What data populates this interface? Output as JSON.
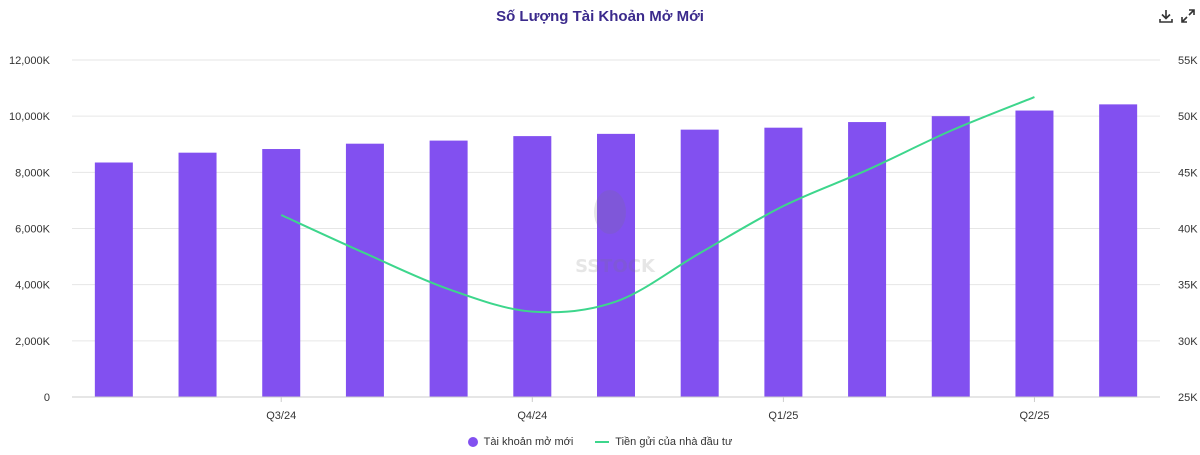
{
  "title": "Số Lượng Tài Khoản Mở Mới",
  "toolbar": {
    "download_icon": "download-icon",
    "expand_icon": "expand-icon"
  },
  "watermark_text": "SSTOCK",
  "colors": {
    "bar": "#8250f0",
    "line": "#3dd68c",
    "title": "#3b2a8c",
    "grid": "#e6e6e6"
  },
  "legend": [
    {
      "label": "Tài khoản mở mới",
      "kind": "dot"
    },
    {
      "label": "Tiền gửi của nhà đầu tư",
      "kind": "line"
    }
  ],
  "chart_data": {
    "type": "bar",
    "title": "Số Lượng Tài Khoản Mở Mới",
    "x_tick_labels": [
      "Q3/24",
      "Q4/24",
      "Q1/25",
      "Q2/25"
    ],
    "x_tick_bar_index": [
      2,
      5,
      8,
      11
    ],
    "left_axis": {
      "ticks": [
        "0",
        "2,000K",
        "4,000K",
        "6,000K",
        "8,000K",
        "10,000K",
        "12,000K"
      ],
      "ylim": [
        0,
        12000
      ]
    },
    "right_axis": {
      "ticks": [
        "25K",
        "30K",
        "35K",
        "40K",
        "45K",
        "50K",
        "55K"
      ],
      "ylim": [
        25,
        55
      ]
    },
    "series": [
      {
        "name": "Tài khoản mở mới",
        "kind": "bar",
        "axis": "left",
        "values": [
          8350,
          8700,
          8830,
          9020,
          9130,
          9290,
          9370,
          9520,
          9590,
          9790,
          10000,
          10200,
          10420
        ]
      },
      {
        "name": "Tiền gửi của nhà đầu tư",
        "kind": "line",
        "axis": "right",
        "points": [
          {
            "i": 2,
            "y": 41.2
          },
          {
            "i": 3,
            "y": 37.8
          },
          {
            "i": 4,
            "y": 34.6
          },
          {
            "i": 5,
            "y": 32.6
          },
          {
            "i": 6,
            "y": 33.5
          },
          {
            "i": 7,
            "y": 37.8
          },
          {
            "i": 8,
            "y": 42.0
          },
          {
            "i": 9,
            "y": 45.2
          },
          {
            "i": 10,
            "y": 48.7
          },
          {
            "i": 11,
            "y": 51.7
          }
        ]
      }
    ],
    "grid": true,
    "legend_position": "bottom"
  }
}
